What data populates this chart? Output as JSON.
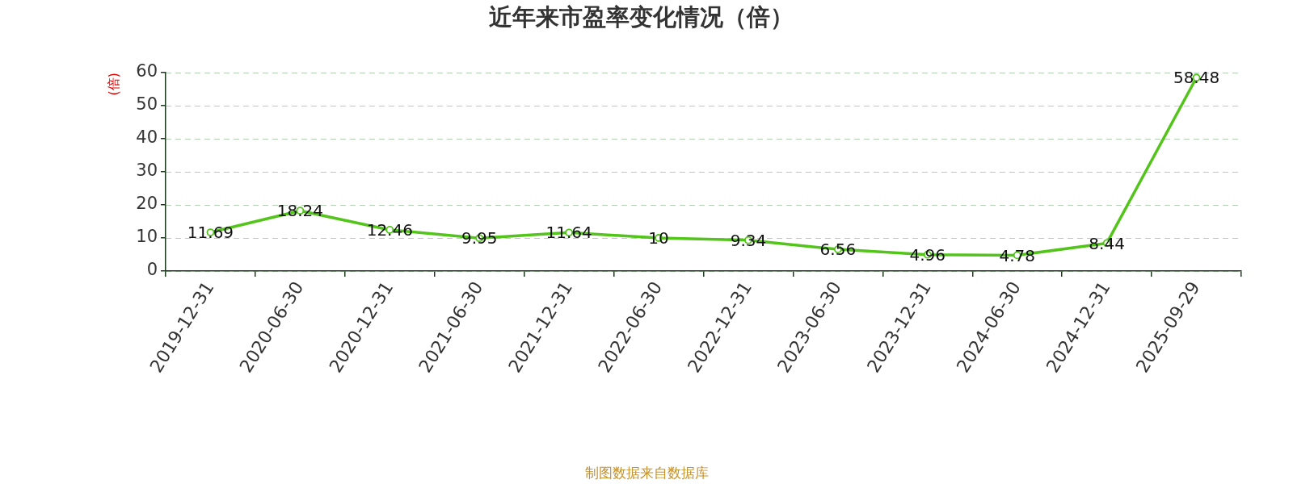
{
  "chart_data": {
    "type": "line",
    "title": "近年来市盈率变化情况（倍）",
    "ylabel": "(倍)",
    "annotations": [
      "制图数据来自数据库"
    ],
    "categories": [
      "2019-12-31",
      "2020-06-30",
      "2020-12-31",
      "2021-06-30",
      "2021-12-31",
      "2022-06-30",
      "2022-12-31",
      "2023-06-30",
      "2023-12-31",
      "2024-06-30",
      "2024-12-31",
      "2025-09-29"
    ],
    "series": [
      {
        "color": "#52c41a",
        "values": [
          11.69,
          18.24,
          12.46,
          9.95,
          11.64,
          10,
          9.34,
          6.56,
          4.96,
          4.78,
          8.44,
          58.48
        ]
      }
    ],
    "ylim": [
      0,
      60
    ],
    "yticks": [
      0,
      10,
      20,
      30,
      40,
      50,
      60
    ],
    "grid": "y",
    "marker": "circle",
    "line_style": "solid",
    "data_labels": true
  }
}
